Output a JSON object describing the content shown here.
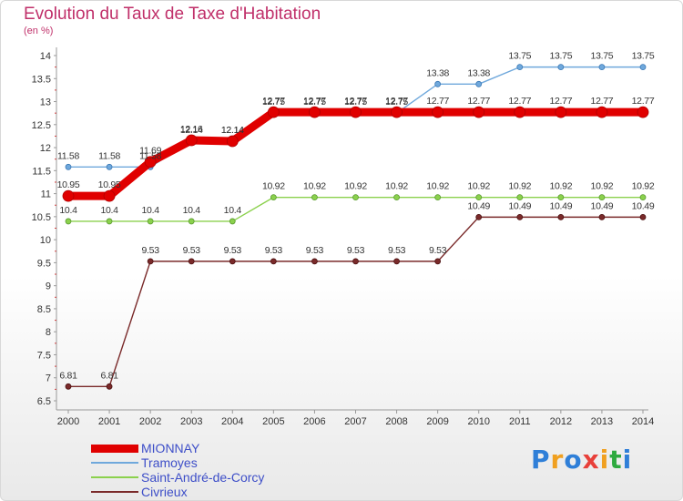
{
  "header": {
    "title": "Evolution du Taux de Taxe d'Habitation",
    "unit": "(en %)"
  },
  "logo": {
    "letters": [
      "P",
      "r",
      "o",
      "x",
      "i",
      "t",
      "i"
    ],
    "colors": [
      "#2f7fd8",
      "#f0a020",
      "#2f7fd8",
      "#e8403a",
      "#f0a020",
      "#2faa40",
      "#2f7fd8"
    ]
  },
  "chart_data": {
    "type": "line",
    "title": "Evolution du Taux de Taxe d'Habitation",
    "ylabel": "(en %)",
    "x": [
      "2000",
      "2001",
      "2002",
      "2003",
      "2004",
      "2005",
      "2006",
      "2007",
      "2008",
      "2009",
      "2010",
      "2011",
      "2012",
      "2013",
      "2014"
    ],
    "ylim": [
      6.5,
      14
    ],
    "yticks": [
      "6.5",
      "7",
      "7.5",
      "8",
      "8.5",
      "9",
      "9.5",
      "10",
      "10.5",
      "11",
      "11.5",
      "12",
      "12.5",
      "13",
      "13.5",
      "14"
    ],
    "grid": false,
    "legend": "bottom-left",
    "series": [
      {
        "name": "MIONNAY",
        "color": "#e00000",
        "values": [
          10.95,
          10.95,
          11.69,
          12.16,
          12.14,
          12.77,
          12.77,
          12.77,
          12.77,
          12.77,
          12.77,
          12.77,
          12.77,
          12.77,
          12.77
        ],
        "labels": [
          "10.95",
          "10.95",
          "11.69",
          "12.16",
          "12.14",
          "12.77",
          "12.77",
          "12.77",
          "12.77",
          "12.77",
          "12.77",
          "12.77",
          "12.77",
          "12.77",
          "12.77"
        ]
      },
      {
        "name": "Tramoyes",
        "color": "#6fa8dc",
        "values": [
          11.58,
          11.58,
          11.58,
          12.14,
          12.14,
          12.75,
          12.75,
          12.75,
          12.75,
          13.38,
          13.38,
          13.75,
          13.75,
          13.75,
          13.75
        ],
        "labels": [
          "11.58",
          "11.58",
          "11.58",
          "12.14",
          "12.14",
          "12.75",
          "12.75",
          "12.75",
          "12.75",
          "13.38",
          "13.38",
          "13.75",
          "13.75",
          "13.75",
          "13.75"
        ]
      },
      {
        "name": "Saint-André-de-Corcy",
        "color": "#8bd14d",
        "values": [
          10.4,
          10.4,
          10.4,
          10.4,
          10.4,
          10.92,
          10.92,
          10.92,
          10.92,
          10.92,
          10.92,
          10.92,
          10.92,
          10.92,
          10.92
        ],
        "labels": [
          "10.4",
          "10.4",
          "10.4",
          "10.4",
          "10.4",
          "10.92",
          "10.92",
          "10.92",
          "10.92",
          "10.92",
          "10.92",
          "10.92",
          "10.92",
          "10.92",
          "10.92"
        ]
      },
      {
        "name": "Civrieux",
        "color": "#7a2a2a",
        "values": [
          6.81,
          6.81,
          9.53,
          9.53,
          9.53,
          9.53,
          9.53,
          9.53,
          9.53,
          9.53,
          10.49,
          10.49,
          10.49,
          10.49,
          10.49
        ],
        "labels": [
          "6.81",
          "6.81",
          "9.53",
          "9.53",
          "9.53",
          "9.53",
          "9.53",
          "9.53",
          "9.53",
          "9.53",
          "10.49",
          "10.49",
          "10.49",
          "10.49",
          "10.49"
        ]
      }
    ]
  }
}
